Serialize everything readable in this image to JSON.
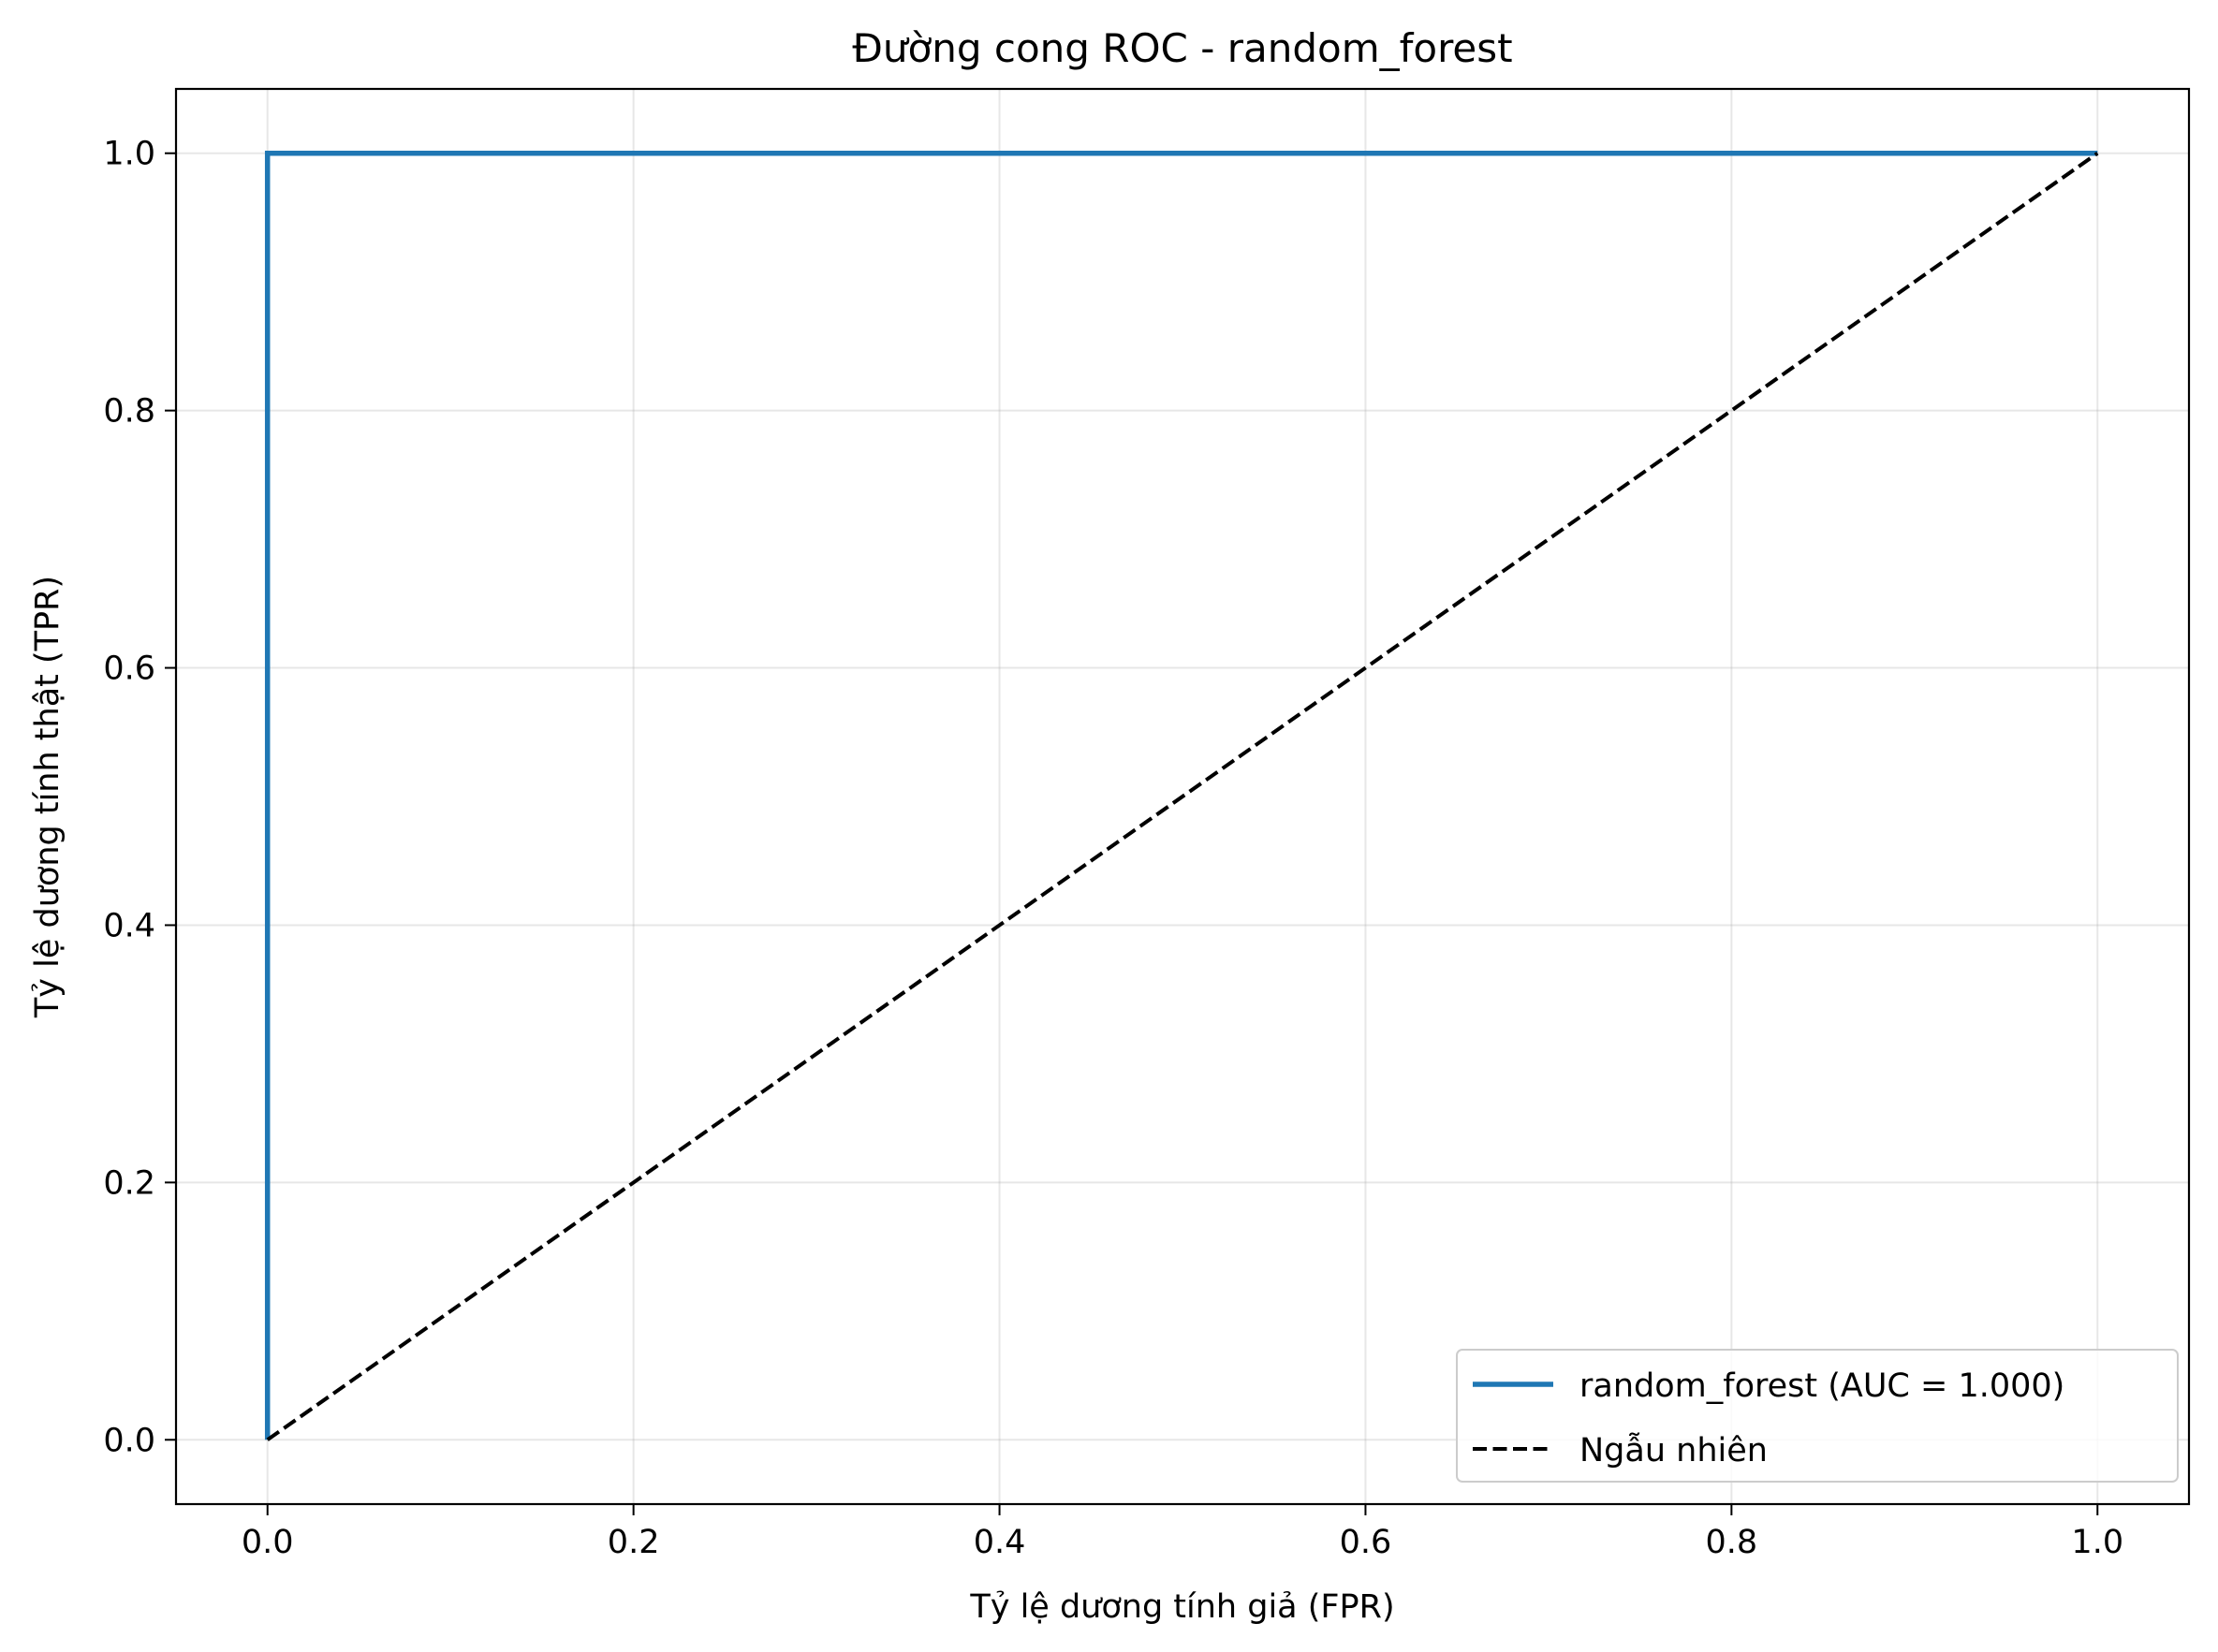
{
  "chart_data": {
    "type": "line",
    "title": "Đường cong ROC - random_forest",
    "xlabel": "Tỷ lệ dương tính giả (FPR)",
    "ylabel": "Tỷ lệ dương tính thật (TPR)",
    "xlim": [
      -0.05,
      1.05
    ],
    "ylim": [
      -0.05,
      1.05
    ],
    "xticks": [
      0.0,
      0.2,
      0.4,
      0.6,
      0.8,
      1.0
    ],
    "xtick_labels": [
      "0.0",
      "0.2",
      "0.4",
      "0.6",
      "0.8",
      "1.0"
    ],
    "yticks": [
      0.0,
      0.2,
      0.4,
      0.6,
      0.8,
      1.0
    ],
    "ytick_labels": [
      "0.0",
      "0.2",
      "0.4",
      "0.6",
      "0.8",
      "1.0"
    ],
    "grid": true,
    "legend_position": "bottom-right",
    "series": [
      {
        "name": "random_forest (AUC = 1.000)",
        "color": "#1f77b4",
        "style": "solid",
        "x": [
          0.0,
          0.0,
          1.0
        ],
        "y": [
          0.0,
          1.0,
          1.0
        ]
      },
      {
        "name": "Ngẫu nhiên",
        "color": "#000000",
        "style": "dashed",
        "x": [
          0.0,
          1.0
        ],
        "y": [
          0.0,
          1.0
        ]
      }
    ]
  }
}
